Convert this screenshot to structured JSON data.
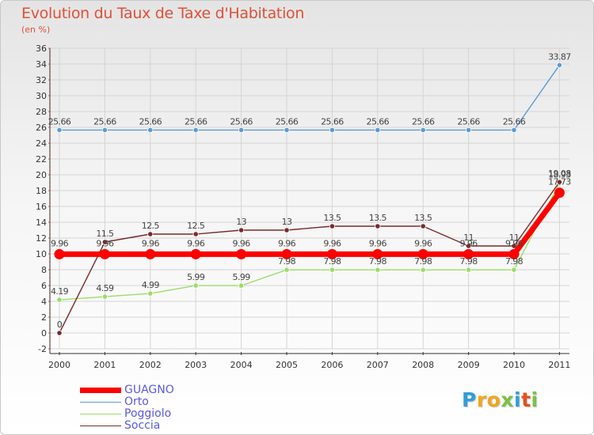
{
  "title": "Evolution du Taux de Taxe d'Habitation",
  "unit_label": "(en %)",
  "logo": {
    "text": "Proxiti",
    "colors": [
      "#2f9fd8",
      "#f2a51f",
      "#f2a51f",
      "#7ac143",
      "#2f9fd8",
      "#e94e1b",
      "#7ac143"
    ]
  },
  "chart_data": {
    "type": "line",
    "x": [
      "2000",
      "2001",
      "2002",
      "2003",
      "2004",
      "2005",
      "2006",
      "2007",
      "2008",
      "2009",
      "2010",
      "2011"
    ],
    "ylim": [
      -2,
      36
    ],
    "yticks": [
      -2,
      0,
      2,
      4,
      6,
      8,
      10,
      12,
      14,
      16,
      18,
      20,
      22,
      24,
      26,
      28,
      30,
      32,
      34,
      36
    ],
    "grid": true,
    "legend_position": "bottom-left",
    "series": [
      {
        "name": "GUAGNO",
        "color": "#ff0000",
        "values": [
          9.96,
          9.96,
          9.96,
          9.96,
          9.96,
          9.96,
          9.96,
          9.96,
          9.96,
          9.96,
          9.96,
          17.73
        ],
        "labels": [
          "9.96",
          "9.96",
          "9.96",
          "9.96",
          "9.96",
          "9.96",
          "9.96",
          "9.96",
          "9.96",
          "9.96",
          "9.96",
          "17.73"
        ]
      },
      {
        "name": "Orto",
        "color": "#5b9bd5",
        "values": [
          25.66,
          25.66,
          25.66,
          25.66,
          25.66,
          25.66,
          25.66,
          25.66,
          25.66,
          25.66,
          25.66,
          33.87
        ],
        "labels": [
          "25.66",
          "25.66",
          "25.66",
          "25.66",
          "25.66",
          "25.66",
          "25.66",
          "25.66",
          "25.66",
          "25.66",
          "25.66",
          "33.87"
        ]
      },
      {
        "name": "Poggiolo",
        "color": "#99dd66",
        "values": [
          4.19,
          4.59,
          4.99,
          5.99,
          5.99,
          7.98,
          7.98,
          7.98,
          7.98,
          7.98,
          7.98,
          18.93
        ],
        "labels": [
          "4.19",
          "4.59",
          "4.99",
          "5.99",
          "5.99",
          "7.98",
          "7.98",
          "7.98",
          "7.98",
          "7.98",
          "7.98",
          "18.93"
        ]
      },
      {
        "name": "Soccia",
        "color": "#7a2a2a",
        "values": [
          0,
          11.5,
          12.5,
          12.5,
          13,
          13,
          13.5,
          13.5,
          13.5,
          11,
          11,
          19.08
        ],
        "labels": [
          "0",
          "11.5",
          "12.5",
          "12.5",
          "13",
          "13",
          "13.5",
          "13.5",
          "13.5",
          "11",
          "11",
          "19.08"
        ]
      }
    ]
  }
}
